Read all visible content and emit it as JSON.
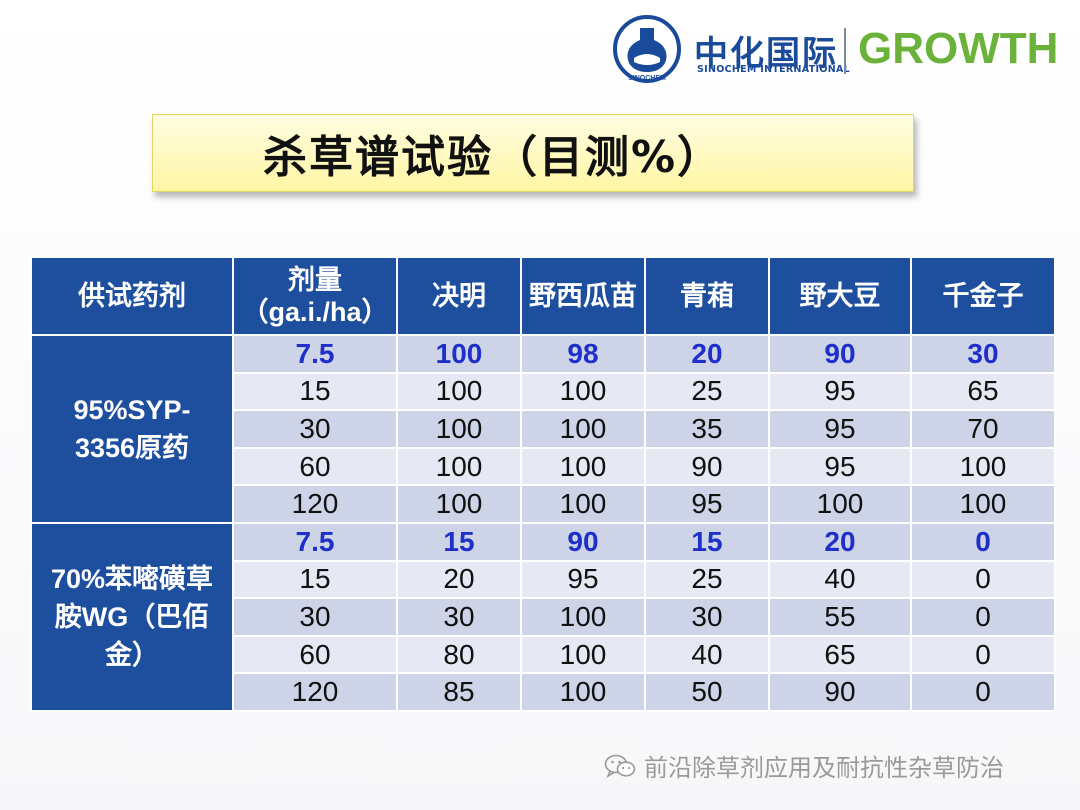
{
  "header": {
    "logo_seal_text": "SINOCHEM",
    "logo_cn": "中化国际",
    "logo_en": "SINOCHEM INTERNATIONAL",
    "logo_growth": "GROWTH",
    "colors": {
      "brand_blue": "#1a4a9a",
      "brand_green": "#6ab23a"
    }
  },
  "title": "杀草谱试验（目测%）",
  "table": {
    "headers": [
      "供试药剂",
      "剂量（ga.i./ha）",
      "决明",
      "野西瓜苗",
      "青葙",
      "野大豆",
      "千金子"
    ],
    "groups": [
      {
        "name": "95%SYP-3356原药",
        "rows": [
          [
            "7.5",
            "100",
            "98",
            "20",
            "90",
            "30"
          ],
          [
            "15",
            "100",
            "100",
            "25",
            "95",
            "65"
          ],
          [
            "30",
            "100",
            "100",
            "35",
            "95",
            "70"
          ],
          [
            "60",
            "100",
            "100",
            "90",
            "95",
            "100"
          ],
          [
            "120",
            "100",
            "100",
            "95",
            "100",
            "100"
          ]
        ]
      },
      {
        "name": "70%苯嘧磺草胺WG（巴佰金）",
        "rows": [
          [
            "7.5",
            "15",
            "90",
            "15",
            "20",
            "0"
          ],
          [
            "15",
            "20",
            "95",
            "25",
            "40",
            "0"
          ],
          [
            "30",
            "30",
            "100",
            "30",
            "55",
            "0"
          ],
          [
            "60",
            "80",
            "100",
            "40",
            "65",
            "0"
          ],
          [
            "120",
            "85",
            "100",
            "50",
            "90",
            "0"
          ]
        ]
      }
    ],
    "colors": {
      "header_bg": "#1e4f9e",
      "row_dark": "#cdd4e8",
      "row_light": "#e6e9f3",
      "highlight_text": "#1f2fc9"
    }
  },
  "footer": {
    "watermark": "前沿除草剂应用及耐抗性杂草防治",
    "icon": "wechat-icon"
  }
}
